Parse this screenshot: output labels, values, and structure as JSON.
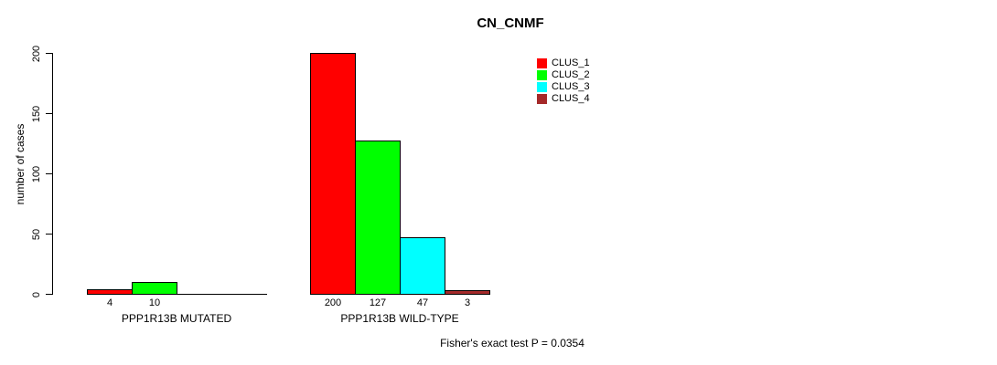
{
  "figure": {
    "background": "#ffffff",
    "text_color": "#000000"
  },
  "chart_data": {
    "type": "bar",
    "title": "CN_CNMF",
    "ylabel": "number of cases",
    "xlabel": "",
    "ylim": [
      0,
      200
    ],
    "yticks": [
      0,
      50,
      100,
      150,
      200
    ],
    "grid": false,
    "legend_position": "top-right",
    "bar_border_color": "#000000",
    "categories": [
      "PPP1R13B MUTATED",
      "PPP1R13B WILD-TYPE"
    ],
    "series": [
      {
        "name": "CLUS_1",
        "color": "#ff0000",
        "values": [
          4,
          200
        ]
      },
      {
        "name": "CLUS_2",
        "color": "#00ff00",
        "values": [
          10,
          127
        ]
      },
      {
        "name": "CLUS_3",
        "color": "#00ffff",
        "values": [
          0,
          47
        ]
      },
      {
        "name": "CLUS_4",
        "color": "#a52a2a",
        "values": [
          0,
          3
        ]
      }
    ],
    "bar_value_labels_visible": true,
    "annotation": "Fisher's exact test P = 0.0354"
  }
}
